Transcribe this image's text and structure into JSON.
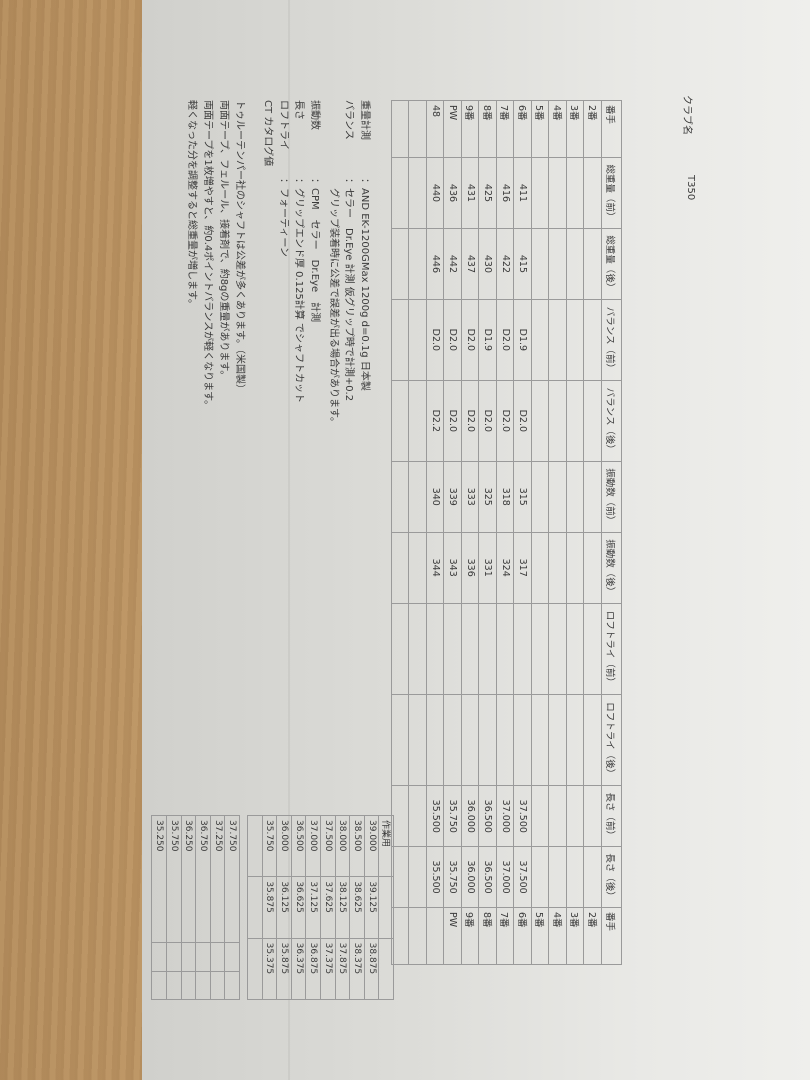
{
  "header": {
    "club_label": "クラブ名",
    "club_value": "T350"
  },
  "main_table": {
    "columns": [
      "番手",
      "総重量（前）",
      "総重量（後）",
      "バランス（前）",
      "バランス（後）",
      "振動数（前）",
      "振動数（後）",
      "ロフトライ（前）",
      "ロフトライ（後）",
      "長さ（前）",
      "長さ（後）",
      "番手"
    ],
    "rows": [
      [
        "2番",
        "",
        "",
        "",
        "",
        "",
        "",
        "",
        "",
        "",
        "",
        "2番"
      ],
      [
        "3番",
        "",
        "",
        "",
        "",
        "",
        "",
        "",
        "",
        "",
        "",
        "3番"
      ],
      [
        "4番",
        "",
        "",
        "",
        "",
        "",
        "",
        "",
        "",
        "",
        "",
        "4番"
      ],
      [
        "5番",
        "",
        "",
        "",
        "",
        "",
        "",
        "",
        "",
        "",
        "",
        "5番"
      ],
      [
        "6番",
        "411",
        "415",
        "D1.9",
        "D2.0",
        "315",
        "317",
        "",
        "",
        "37.500",
        "37.500",
        "6番"
      ],
      [
        "7番",
        "416",
        "422",
        "D2.0",
        "D2.0",
        "318",
        "324",
        "",
        "",
        "37.000",
        "37.000",
        "7番"
      ],
      [
        "8番",
        "425",
        "430",
        "D1.9",
        "D2.0",
        "325",
        "331",
        "",
        "",
        "36.500",
        "36.500",
        "8番"
      ],
      [
        "9番",
        "431",
        "437",
        "D2.0",
        "D2.0",
        "333",
        "336",
        "",
        "",
        "36.000",
        "36.000",
        "9番"
      ],
      [
        "PW",
        "436",
        "442",
        "D2.0",
        "D2.0",
        "339",
        "343",
        "",
        "",
        "35.750",
        "35.750",
        "PW"
      ],
      [
        "48",
        "440",
        "446",
        "D2.0",
        "D2.2",
        "340",
        "344",
        "",
        "",
        "35.500",
        "35.500",
        ""
      ],
      [
        "",
        "",
        "",
        "",
        "",
        "",
        "",
        "",
        "",
        "",
        "",
        ""
      ],
      [
        "",
        "",
        "",
        "",
        "",
        "",
        "",
        "",
        "",
        "",
        "",
        ""
      ]
    ]
  },
  "notes": {
    "lines": [
      {
        "label": "重量計測",
        "value": "：AND EK-1200GMax 1200g d=0.1g 日本製"
      },
      {
        "label": "バランス",
        "value": "：セラー　Dr.Eye 計測 仮グリップ時で計測+0.2"
      },
      {
        "label": "",
        "value": "　グリップ装着時に公差で誤差が出る場合があります。"
      },
      {
        "label": "振動数",
        "value": "：CPM　セラー　Dr.Eye　計測"
      },
      {
        "label": "長さ",
        "value": "：グリップエンド厚 0.125計算 でシャフトカット"
      },
      {
        "label": "ロフトライ",
        "value": "：フォーティーン"
      },
      {
        "label": "CT カタログ値",
        "value": ""
      }
    ],
    "paragraph": [
      "トゥルーテンパー社のシャフトは公差が多くあります。（米国製）",
      "両面テープ、フェルール、接着剤で、約8gの重量があります。",
      "両面テープを1枚増やすと、約0.4ポイントバランスが軽くなります。",
      "軽くなった分を調整すると総重量が増します。"
    ]
  },
  "work_table": {
    "label": "作業用",
    "rows": [
      [
        "作業用",
        "",
        ""
      ],
      [
        "39.000",
        "39.125",
        "38.875"
      ],
      [
        "38.500",
        "38.625",
        "38.375"
      ],
      [
        "38.000",
        "38.125",
        "37.875"
      ],
      [
        "37.500",
        "37.625",
        "37.375"
      ],
      [
        "37.000",
        "37.125",
        "36.875"
      ],
      [
        "36.500",
        "36.625",
        "36.375"
      ],
      [
        "36.000",
        "36.125",
        "35.875"
      ],
      [
        "35.750",
        "35.875",
        "35.375"
      ],
      [
        "",
        "",
        ""
      ]
    ]
  },
  "small_table": {
    "rows": [
      [
        "37.750",
        "",
        ""
      ],
      [
        "37.250",
        "",
        ""
      ],
      [
        "36.750",
        "",
        ""
      ],
      [
        "36.250",
        "",
        ""
      ],
      [
        "35.750",
        "",
        ""
      ],
      [
        "35.250",
        "",
        ""
      ]
    ]
  }
}
